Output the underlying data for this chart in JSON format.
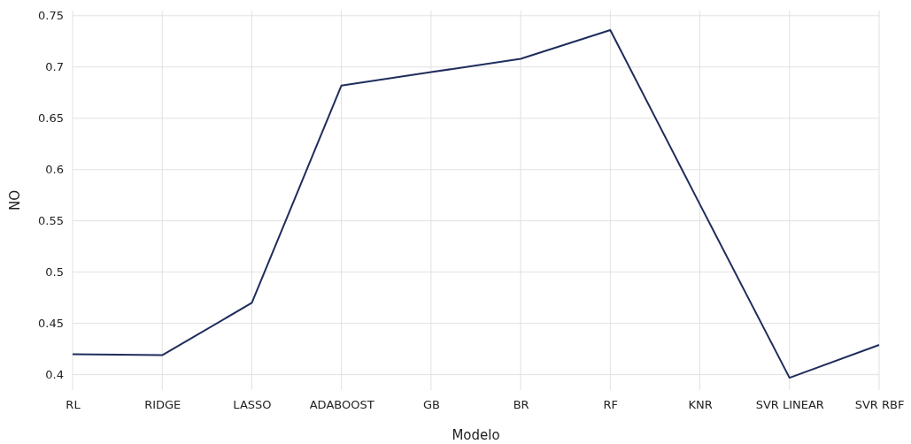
{
  "chart_data": {
    "type": "line",
    "xlabel": "Modelo",
    "ylabel": "NO",
    "categories": [
      "RL",
      "RIDGE",
      "LASSO",
      "ADABOOST",
      "GB",
      "BR",
      "RF",
      "KNR",
      "SVR LINEAR",
      "SVR RBF"
    ],
    "series": [
      {
        "color": "#1f2d5c",
        "values": [
          0.42,
          0.419,
          0.47,
          0.682,
          0.695,
          0.708,
          0.736,
          0.566,
          0.397,
          0.429
        ]
      }
    ],
    "ylim": [
      0.385,
      0.755
    ],
    "yticks": [
      0.4,
      0.45,
      0.5,
      0.55,
      0.6,
      0.65,
      0.7,
      0.75
    ],
    "grid": true,
    "marker": "none",
    "line_style": "solid"
  }
}
